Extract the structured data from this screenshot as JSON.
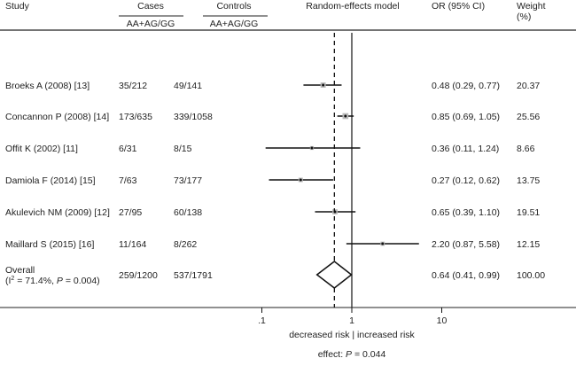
{
  "headers": {
    "study": "Study",
    "cases": "Cases",
    "cases_sub": "AA+AG/GG",
    "controls": "Controls",
    "controls_sub": "AA+AG/GG",
    "model": "Random-effects model",
    "or": "OR (95% CI)",
    "weight": "Weight",
    "weight_unit": "(%)"
  },
  "chart_data": {
    "type": "forest",
    "x_scale": "log",
    "xticks": [
      0.1,
      1,
      10
    ],
    "xtick_labels": [
      ".1",
      "1",
      "10"
    ],
    "xlabel": "decreased risk | increased risk",
    "footer": "effect: ",
    "footer_p": "P",
    "footer_value": " = 0.044",
    "null_line": 1,
    "studies": [
      {
        "study": "Broeks A (2008) [13]",
        "cases": "35/212",
        "controls": "49/141",
        "or": 0.48,
        "lo": 0.29,
        "hi": 0.77,
        "or_text": "0.48 (0.29, 0.77)",
        "weight": "20.37"
      },
      {
        "study": "Concannon P (2008) [14]",
        "cases": "173/635",
        "controls": "339/1058",
        "or": 0.85,
        "lo": 0.69,
        "hi": 1.05,
        "or_text": "0.85 (0.69, 1.05)",
        "weight": "25.56"
      },
      {
        "study": "Offit K (2002) [11]",
        "cases": "6/31",
        "controls": "8/15",
        "or": 0.36,
        "lo": 0.11,
        "hi": 1.24,
        "or_text": "0.36 (0.11, 1.24)",
        "weight": "8.66"
      },
      {
        "study": "Damiola F (2014) [15]",
        "cases": "7/63",
        "controls": "73/177",
        "or": 0.27,
        "lo": 0.12,
        "hi": 0.62,
        "or_text": "0.27 (0.12, 0.62)",
        "weight": "13.75"
      },
      {
        "study": "Akulevich NM (2009) [12]",
        "cases": "27/95",
        "controls": "60/138",
        "or": 0.65,
        "lo": 0.39,
        "hi": 1.1,
        "or_text": "0.65 (0.39, 1.10)",
        "weight": "19.51"
      },
      {
        "study": "Maillard S (2015) [16]",
        "cases": "11/164",
        "controls": "8/262",
        "or": 2.2,
        "lo": 0.87,
        "hi": 5.58,
        "or_text": "2.20 (0.87, 5.58)",
        "weight": "12.15"
      }
    ],
    "overall": {
      "study": "Overall",
      "heterogeneity_pre": "(I",
      "heterogeneity_sup": "2",
      "heterogeneity_mid": " = 71.4%, ",
      "heterogeneity_p": "P",
      "heterogeneity_post": " = 0.004)",
      "cases": "259/1200",
      "controls": "537/1791",
      "or": 0.64,
      "lo": 0.41,
      "hi": 0.99,
      "or_text": "0.64 (0.41, 0.99)",
      "weight": "100.00"
    }
  }
}
